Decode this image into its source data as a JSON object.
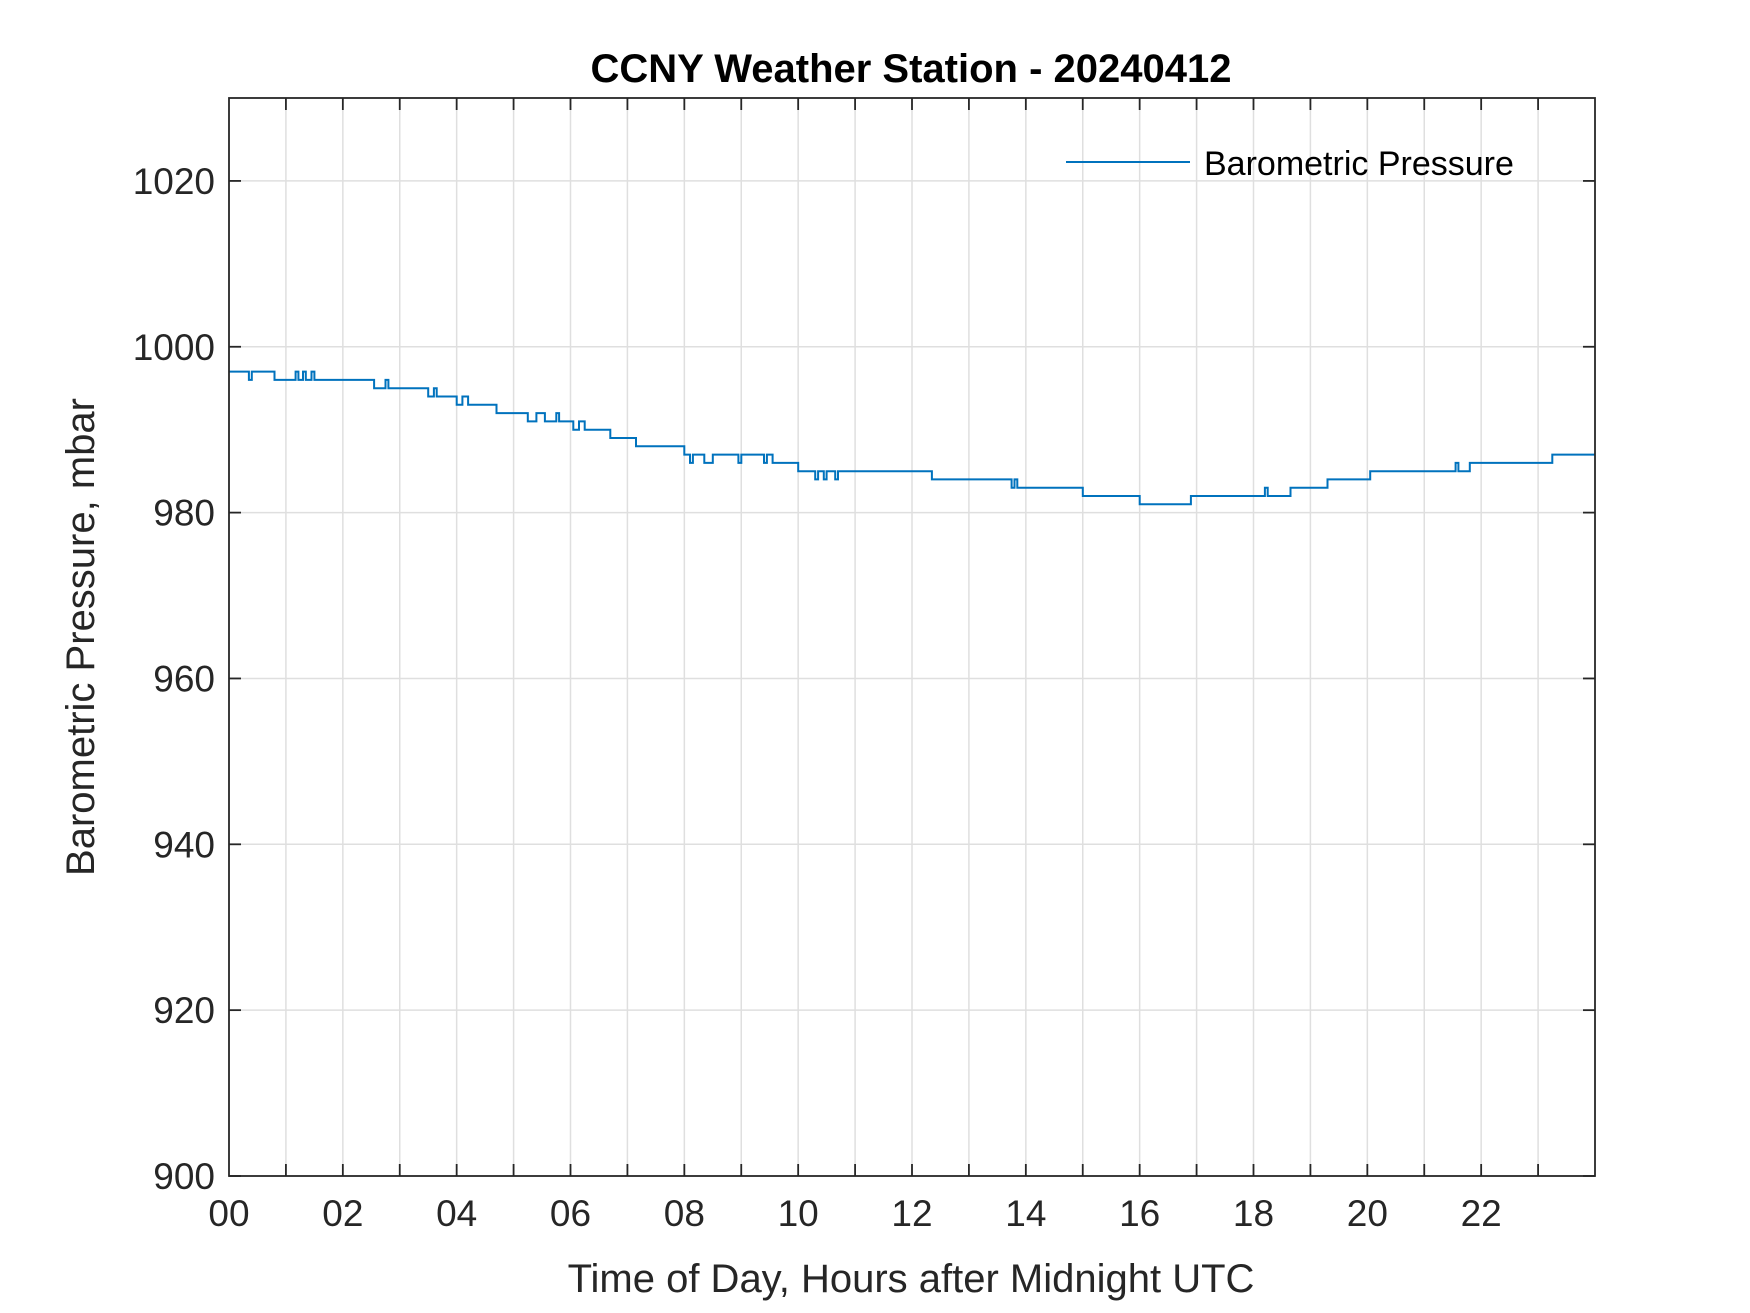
{
  "chart_data": {
    "type": "line",
    "title": "CCNY Weather Station - 20240412",
    "xlabel": "Time of Day, Hours after Midnight UTC",
    "ylabel": "Barometric Pressure, mbar",
    "xlim": [
      0,
      24
    ],
    "ylim": [
      900,
      1030
    ],
    "x_ticks": [
      0,
      2,
      4,
      6,
      8,
      10,
      12,
      14,
      16,
      18,
      20,
      22
    ],
    "x_tick_labels": [
      "00",
      "02",
      "04",
      "06",
      "08",
      "10",
      "12",
      "14",
      "16",
      "18",
      "20",
      "22"
    ],
    "y_ticks": [
      900,
      920,
      940,
      960,
      980,
      1000,
      1020
    ],
    "y_tick_labels": [
      "900",
      "920",
      "940",
      "960",
      "980",
      "1000",
      "1020"
    ],
    "grid": true,
    "legend_position": "top-right",
    "series": [
      {
        "name": "Barometric Pressure",
        "color": "#0072BD",
        "x": [
          0,
          0.35,
          0.35,
          0.4,
          0.4,
          0.8,
          0.8,
          1.17,
          1.17,
          1.22,
          1.22,
          1.3,
          1.3,
          1.35,
          1.35,
          1.45,
          1.45,
          1.5,
          1.5,
          1.58,
          1.58,
          2.55,
          2.55,
          2.75,
          2.75,
          2.8,
          2.8,
          2.85,
          2.85,
          3.5,
          3.5,
          3.6,
          3.6,
          3.65,
          3.65,
          4.0,
          4.0,
          4.1,
          4.1,
          4.2,
          4.2,
          4.25,
          4.25,
          4.7,
          4.7,
          5.25,
          5.25,
          5.4,
          5.4,
          5.55,
          5.55,
          5.75,
          5.75,
          5.8,
          5.8,
          5.95,
          5.95,
          6.05,
          6.05,
          6.15,
          6.15,
          6.25,
          6.25,
          6.7,
          6.7,
          7.15,
          7.15,
          8.0,
          8.0,
          8.1,
          8.1,
          8.15,
          8.15,
          8.35,
          8.35,
          8.5,
          8.5,
          8.95,
          8.95,
          9.0,
          9.0,
          9.4,
          9.4,
          9.45,
          9.45,
          9.55,
          9.55,
          9.6,
          9.6,
          10.0,
          10.0,
          10.3,
          10.3,
          10.35,
          10.35,
          10.45,
          10.45,
          10.5,
          10.5,
          10.65,
          10.65,
          10.7,
          10.7,
          12.35,
          12.35,
          13.75,
          13.75,
          13.8,
          13.8,
          13.85,
          13.85,
          13.9,
          13.9,
          15.0,
          15.0,
          16.0,
          16.0,
          16.9,
          16.9,
          18.2,
          18.2,
          18.25,
          18.25,
          18.35,
          18.35,
          18.65,
          18.65,
          19.3,
          19.3,
          20.05,
          20.05,
          21.55,
          21.55,
          21.6,
          21.6,
          21.65,
          21.65,
          21.8,
          21.8,
          23.25,
          23.25,
          24
        ],
        "y": [
          997,
          997,
          996,
          996,
          997,
          997,
          996,
          996,
          997,
          997,
          996,
          996,
          997,
          997,
          996,
          996,
          997,
          997,
          996,
          996,
          996,
          996,
          995,
          995,
          996,
          996,
          995,
          995,
          995,
          995,
          994,
          994,
          995,
          995,
          994,
          994,
          993,
          993,
          994,
          994,
          993,
          993,
          993,
          993,
          992,
          992,
          991,
          991,
          992,
          992,
          991,
          991,
          992,
          992,
          991,
          991,
          991,
          991,
          990,
          990,
          991,
          991,
          990,
          990,
          989,
          989,
          988,
          988,
          987,
          987,
          986,
          986,
          987,
          987,
          986,
          986,
          987,
          987,
          986,
          986,
          987,
          987,
          986,
          986,
          987,
          987,
          986,
          986,
          986,
          986,
          985,
          985,
          984,
          984,
          985,
          985,
          984,
          984,
          985,
          985,
          984,
          984,
          985,
          985,
          984,
          984,
          983,
          983,
          984,
          984,
          983,
          983,
          983,
          983,
          982,
          982,
          981,
          981,
          982,
          982,
          983,
          983,
          982,
          982,
          982,
          982,
          983,
          983,
          984,
          984,
          985,
          985,
          986,
          986,
          985,
          985,
          985,
          985,
          986,
          986,
          987,
          987
        ]
      }
    ]
  }
}
